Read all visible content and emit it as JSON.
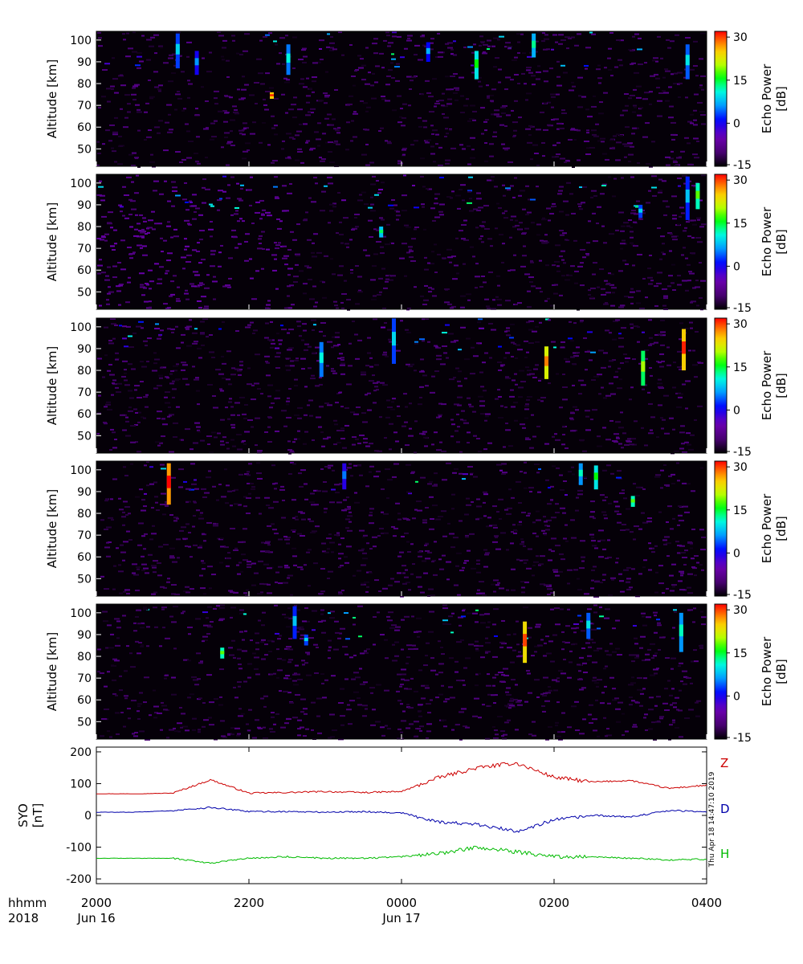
{
  "chart_data": [
    {
      "type": "heatmap",
      "panel": 1,
      "ylabel": "Altitude [km]",
      "y_ticks": [
        50,
        60,
        70,
        80,
        90,
        100
      ],
      "ylim": [
        42,
        104
      ],
      "xlim_hours": [
        20,
        28
      ],
      "colorbar": {
        "label_line1": "Echo Power",
        "label_line2": "[dB]",
        "ticks": [
          -15,
          0,
          15,
          30
        ],
        "range": [
          -15,
          32
        ]
      },
      "layers": [
        {
          "height": 13.5
        },
        {
          "alt": 98,
          "height": 2.5,
          "time": [
            "2000",
            "2300",
            "0000",
            "0100",
            "0200",
            "0300",
            "0340"
          ],
          "level": [
            -8,
            -5,
            -3,
            -6,
            -4,
            -7,
            -2
          ]
        }
      ],
      "bands": [
        {
          "time": "2104",
          "alt_min": 87,
          "alt_max": 103,
          "db": 3
        },
        {
          "time": "2231",
          "alt_min": 84,
          "alt_max": 98,
          "db": 5
        },
        {
          "time": "2218",
          "alt_min": 73,
          "alt_max": 76,
          "db": 25
        },
        {
          "time": "0144",
          "alt_min": 92,
          "alt_max": 103,
          "db": 7
        },
        {
          "time": "0345",
          "alt_min": 82,
          "alt_max": 98,
          "db": 4
        },
        {
          "time": "0021",
          "alt_min": 90,
          "alt_max": 99,
          "db": 1
        },
        {
          "time": "0059",
          "alt_min": 82,
          "alt_max": 95,
          "db": 10
        },
        {
          "time": "2119",
          "alt_min": 84,
          "alt_max": 95,
          "db": 0
        }
      ],
      "speckle_seed": 11
    },
    {
      "type": "heatmap",
      "panel": 2,
      "ylabel": "Altitude [km]",
      "y_ticks": [
        50,
        60,
        70,
        80,
        90,
        100
      ],
      "ylim": [
        42,
        104
      ],
      "xlim_hours": [
        20,
        28
      ],
      "colorbar": {
        "label_line1": "Echo Power",
        "label_line2": "[dB]",
        "ticks": [
          -15,
          0,
          15,
          30
        ],
        "range": [
          -15,
          32
        ]
      },
      "layers": [
        {
          "alt": 98,
          "height": 3,
          "time": [
            "2000",
            "2300",
            "0000",
            "0100",
            "0200",
            "0300",
            "0340"
          ],
          "level": [
            -6,
            -6,
            -5,
            -5,
            -4,
            -5,
            -2
          ]
        }
      ],
      "bands": [
        {
          "time": "0345",
          "alt_min": 83,
          "alt_max": 103,
          "db": 2
        },
        {
          "time": "0353",
          "alt_min": 88,
          "alt_max": 100,
          "db": 12
        },
        {
          "time": "2344",
          "alt_min": 75,
          "alt_max": 80,
          "db": 8
        },
        {
          "time": "0308",
          "alt_min": 84,
          "alt_max": 90,
          "db": 3
        }
      ],
      "speckle_seed": 23
    },
    {
      "type": "heatmap",
      "panel": 3,
      "ylabel": "Altitude [km]",
      "y_ticks": [
        50,
        60,
        70,
        80,
        90,
        100
      ],
      "ylim": [
        42,
        104
      ],
      "xlim_hours": [
        20,
        28
      ],
      "colorbar": {
        "label_line1": "Echo Power",
        "label_line2": "[dB]",
        "ticks": [
          -15,
          0,
          15,
          30
        ],
        "range": [
          -15,
          32
        ]
      },
      "layers": [
        {
          "alt": 96,
          "height": 3,
          "time": [
            "2000",
            "2300",
            "0000",
            "0100",
            "0200",
            "0300",
            "0340"
          ],
          "level": [
            -8,
            -6,
            -4,
            -6,
            -3,
            -3,
            0
          ]
        }
      ],
      "bands": [
        {
          "time": "2257",
          "alt_min": 77,
          "alt_max": 93,
          "db": 5
        },
        {
          "time": "2354",
          "alt_min": 83,
          "alt_max": 104,
          "db": 3
        },
        {
          "time": "0154",
          "alt_min": 76,
          "alt_max": 91,
          "db": 22
        },
        {
          "time": "0342",
          "alt_min": 80,
          "alt_max": 99,
          "db": 25
        },
        {
          "time": "0310",
          "alt_min": 73,
          "alt_max": 89,
          "db": 14
        }
      ],
      "speckle_seed": 37
    },
    {
      "type": "heatmap",
      "panel": 4,
      "ylabel": "Altitude [km]",
      "y_ticks": [
        50,
        60,
        70,
        80,
        90,
        100
      ],
      "ylim": [
        42,
        104
      ],
      "xlim_hours": [
        20,
        28
      ],
      "colorbar": {
        "label_line1": "Echo Power",
        "label_line2": "[dB]",
        "ticks": [
          -15,
          0,
          15,
          30
        ],
        "range": [
          -15,
          32
        ]
      },
      "layers": [
        {
          "alt": 96,
          "height": 3,
          "time": [
            "2000",
            "2300",
            "0000",
            "0100",
            "0200",
            "0300",
            "0340"
          ],
          "level": [
            -6,
            -4,
            -2,
            -3,
            -3,
            -4,
            -3
          ]
        }
      ],
      "bands": [
        {
          "time": "2057",
          "alt_min": 84,
          "alt_max": 103,
          "db": 27
        },
        {
          "time": "0221",
          "alt_min": 93,
          "alt_max": 103,
          "db": 6
        },
        {
          "time": "2315",
          "alt_min": 91,
          "alt_max": 103,
          "db": -1
        },
        {
          "time": "0233",
          "alt_min": 91,
          "alt_max": 102,
          "db": 10
        },
        {
          "time": "0302",
          "alt_min": 83,
          "alt_max": 88,
          "db": 12
        }
      ],
      "speckle_seed": 53
    },
    {
      "type": "heatmap",
      "panel": 5,
      "ylabel": "Altitude [km]",
      "y_ticks": [
        50,
        60,
        70,
        80,
        90,
        100
      ],
      "ylim": [
        42,
        104
      ],
      "xlim_hours": [
        20,
        28
      ],
      "colorbar": {
        "label_line1": "Echo Power",
        "label_line2": "[dB]",
        "ticks": [
          -15,
          0,
          15,
          30
        ],
        "range": [
          -15,
          32
        ]
      },
      "layers": [
        {
          "alt": 96,
          "height": 3,
          "time": [
            "2000",
            "2300",
            "0000",
            "0100",
            "0200",
            "0300",
            "0340"
          ],
          "level": [
            -6,
            -5,
            -5,
            -5,
            -4,
            -4,
            -2
          ]
        }
      ],
      "bands": [
        {
          "time": "0137",
          "alt_min": 77,
          "alt_max": 96,
          "db": 24
        },
        {
          "time": "0340",
          "alt_min": 82,
          "alt_max": 100,
          "db": 6
        },
        {
          "time": "2236",
          "alt_min": 88,
          "alt_max": 103,
          "db": 2
        },
        {
          "time": "2139",
          "alt_min": 79,
          "alt_max": 84,
          "db": 12
        },
        {
          "time": "2245",
          "alt_min": 85,
          "alt_max": 90,
          "db": 3
        },
        {
          "time": "0227",
          "alt_min": 88,
          "alt_max": 100,
          "db": 4
        }
      ],
      "speckle_seed": 71
    },
    {
      "type": "line",
      "panel": 6,
      "ylabel_line1": "SYO",
      "ylabel_line2": "[nT]",
      "ylim": [
        -215,
        215
      ],
      "y_ticks": [
        -200,
        -100,
        0,
        100,
        200
      ],
      "x_hours": [
        20.0,
        20.5,
        21.0,
        21.5,
        22.0,
        22.5,
        23.0,
        23.5,
        24.0,
        24.5,
        25.0,
        25.5,
        26.0,
        26.5,
        27.0,
        27.5,
        28.0
      ],
      "series": [
        {
          "name": "Z",
          "color": "#cc0000",
          "values": [
            68,
            68,
            70,
            112,
            70,
            72,
            75,
            72,
            75,
            120,
            150,
            165,
            120,
            105,
            110,
            85,
            95
          ]
        },
        {
          "name": "D",
          "color": "#0000aa",
          "values": [
            10,
            10,
            15,
            25,
            12,
            12,
            10,
            12,
            8,
            -20,
            -30,
            -50,
            -15,
            0,
            -5,
            15,
            12
          ]
        },
        {
          "name": "H",
          "color": "#00bb00",
          "values": [
            -135,
            -135,
            -135,
            -150,
            -135,
            -130,
            -135,
            -135,
            -130,
            -120,
            -100,
            -115,
            -130,
            -130,
            -135,
            -140,
            -138
          ]
        }
      ],
      "legend": [
        "Z",
        "D",
        "H"
      ],
      "stamp": "Thu Apr 18 14:47:10 2019"
    }
  ],
  "x_axis": {
    "row1_label": "hhmm",
    "row2_label": "2018",
    "ticks": [
      {
        "hour": 20,
        "label": "2000",
        "sub": "Jun 16"
      },
      {
        "hour": 22,
        "label": "2200",
        "sub": ""
      },
      {
        "hour": 24,
        "label": "0000",
        "sub": "Jun 17"
      },
      {
        "hour": 26,
        "label": "0200",
        "sub": ""
      },
      {
        "hour": 28,
        "label": "0400",
        "sub": ""
      }
    ]
  }
}
